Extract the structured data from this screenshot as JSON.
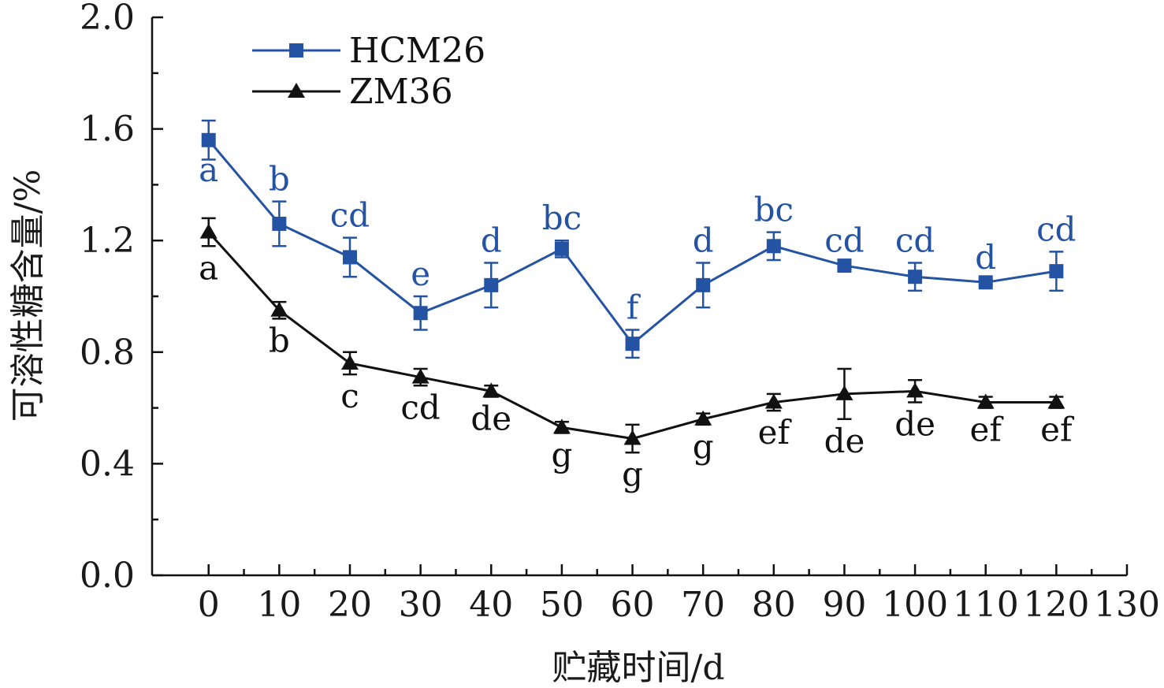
{
  "chart_data": {
    "type": "line",
    "xlabel": "贮藏时间/d",
    "ylabel": "可溶性糖含量/%",
    "xlim": [
      -8,
      130
    ],
    "ylim": [
      0,
      2.0
    ],
    "x_ticks": [
      0,
      10,
      20,
      30,
      40,
      50,
      60,
      70,
      80,
      90,
      100,
      110,
      120,
      130
    ],
    "x_tick_labels": [
      "0",
      "10",
      "20",
      "30",
      "40",
      "50",
      "60",
      "70",
      "80",
      "90",
      "100",
      "110",
      "120",
      "130"
    ],
    "y_ticks": [
      0.0,
      0.4,
      0.8,
      1.2,
      1.6,
      2.0
    ],
    "y_tick_labels": [
      "0.0",
      "0.4",
      "0.8",
      "1.2",
      "1.6",
      "2.0"
    ],
    "legend_position": "top-left",
    "grid": false,
    "x": [
      0,
      10,
      20,
      30,
      40,
      50,
      60,
      70,
      80,
      90,
      100,
      110,
      120
    ],
    "series": [
      {
        "name": "HCM26",
        "color": "#2553a3",
        "marker": "square",
        "values": [
          1.56,
          1.26,
          1.14,
          0.94,
          1.04,
          1.17,
          0.83,
          1.04,
          1.18,
          1.11,
          1.07,
          1.05,
          1.09
        ],
        "errors": [
          0.07,
          0.08,
          0.07,
          0.06,
          0.08,
          0.03,
          0.05,
          0.08,
          0.05,
          0.01,
          0.05,
          0.01,
          0.07
        ],
        "labels": [
          "a",
          "b",
          "cd",
          "e",
          "d",
          "bc",
          "f",
          "d",
          "bc",
          "cd",
          "cd",
          "d",
          "cd"
        ]
      },
      {
        "name": "ZM36",
        "color": "#111111",
        "marker": "triangle",
        "values": [
          1.23,
          0.95,
          0.76,
          0.71,
          0.66,
          0.53,
          0.49,
          0.56,
          0.62,
          0.65,
          0.66,
          0.62,
          0.62
        ],
        "errors": [
          0.05,
          0.03,
          0.04,
          0.03,
          0.02,
          0.02,
          0.05,
          0.02,
          0.03,
          0.09,
          0.04,
          0.02,
          0.02
        ],
        "labels": [
          "a",
          "b",
          "c",
          "cd",
          "de",
          "g",
          "g",
          "g",
          "ef",
          "de",
          "de",
          "ef",
          "ef"
        ]
      }
    ]
  }
}
